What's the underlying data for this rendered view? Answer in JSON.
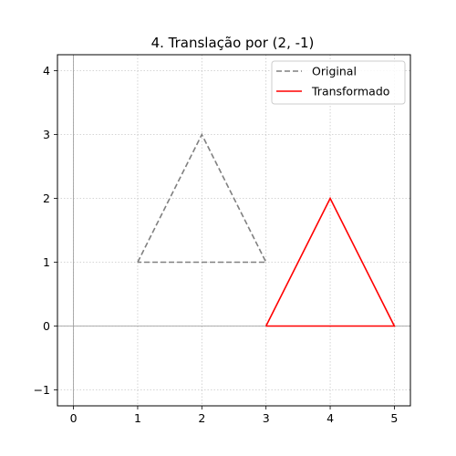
{
  "chart_data": {
    "type": "line",
    "title": "4. Translação por (2, -1)",
    "xlabel": "",
    "ylabel": "",
    "xlim": [
      -0.25,
      5.25
    ],
    "ylim": [
      -1.25,
      4.25
    ],
    "xticks": [
      0,
      1,
      2,
      3,
      4,
      5
    ],
    "yticks": [
      -1,
      0,
      1,
      2,
      3,
      4
    ],
    "grid": true,
    "legend_position": "top-right",
    "reference_lines": {
      "x": 0,
      "y": 0,
      "color": "#999999"
    },
    "series": [
      {
        "name": "Original",
        "color": "#808080",
        "style": "dashed",
        "x": [
          1,
          2,
          3,
          1
        ],
        "y": [
          1,
          3,
          1,
          1
        ]
      },
      {
        "name": "Transformado",
        "color": "#ff0000",
        "style": "solid",
        "x": [
          3,
          4,
          5,
          3
        ],
        "y": [
          0,
          2,
          0,
          0
        ]
      }
    ]
  }
}
